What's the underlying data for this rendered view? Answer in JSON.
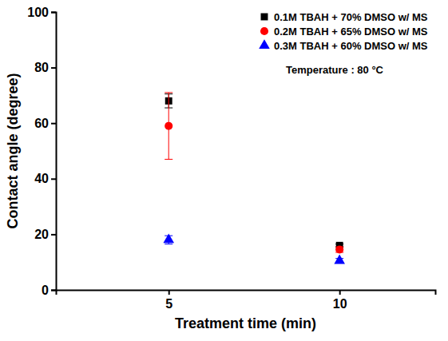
{
  "chart_data": {
    "type": "scatter",
    "x_label": "Treatment time (min)",
    "y_label": "Contact angle (degree)",
    "annotation": "Temperature : 80 °C",
    "x": [
      5,
      10
    ],
    "xlim": [
      1.7,
      12.8
    ],
    "xticks": [
      5,
      10
    ],
    "ylim": [
      0,
      100
    ],
    "yticks": [
      0,
      20,
      40,
      60,
      80,
      100
    ],
    "legend": "top-right",
    "grid": false,
    "series": [
      {
        "name": "0.1M TBAH + 70% DMSO w/ MS",
        "color": "#000000",
        "marker": "square",
        "values": [
          68,
          16
        ],
        "errors": [
          2.5,
          0.5
        ]
      },
      {
        "name": "0.2M TBAH + 65% DMSO w/ MS",
        "color": "#ff0000",
        "marker": "circle",
        "values": [
          59,
          14.5
        ],
        "errors": [
          12,
          1
        ]
      },
      {
        "name": "0.3M TBAH + 60% DMSO w/ MS",
        "color": "#0000ff",
        "marker": "triangle",
        "values": [
          18,
          10.5
        ],
        "errors": [
          1.5,
          0.8
        ]
      }
    ]
  }
}
